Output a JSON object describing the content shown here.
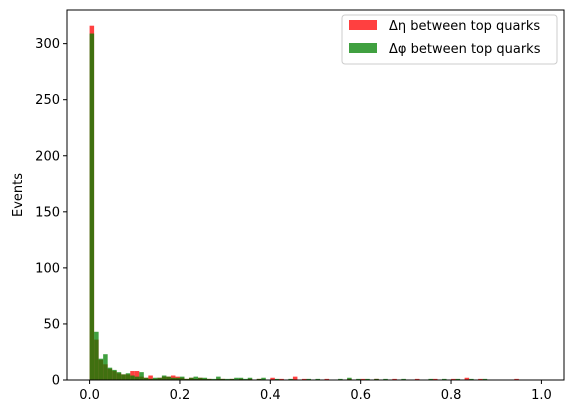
{
  "chart_data": {
    "type": "bar",
    "title": "",
    "xlabel": "",
    "ylabel": "Events",
    "xlim": [
      -0.05,
      1.05
    ],
    "ylim": [
      0,
      330
    ],
    "xticks": [
      "0.0",
      "0.2",
      "0.4",
      "0.6",
      "0.8",
      "1.0"
    ],
    "yticks": [
      "0",
      "50",
      "100",
      "150",
      "200",
      "250",
      "300"
    ],
    "grid": false,
    "legend_position": "top-right",
    "bin_width": 0.01,
    "series": [
      {
        "name": "Δη between top quarks",
        "color": "#ff0000",
        "alpha": 0.75,
        "bins": [
          [
            0.0,
            316
          ],
          [
            0.01,
            36
          ],
          [
            0.02,
            18
          ],
          [
            0.03,
            14
          ],
          [
            0.04,
            10
          ],
          [
            0.05,
            8
          ],
          [
            0.06,
            6
          ],
          [
            0.07,
            5
          ],
          [
            0.08,
            5
          ],
          [
            0.09,
            8
          ],
          [
            0.1,
            8
          ],
          [
            0.11,
            3
          ],
          [
            0.12,
            2
          ],
          [
            0.13,
            4
          ],
          [
            0.14,
            1
          ],
          [
            0.15,
            2
          ],
          [
            0.16,
            3
          ],
          [
            0.17,
            3
          ],
          [
            0.18,
            4
          ],
          [
            0.19,
            3
          ],
          [
            0.2,
            2
          ],
          [
            0.21,
            1
          ],
          [
            0.22,
            2
          ],
          [
            0.23,
            1
          ],
          [
            0.24,
            2
          ],
          [
            0.25,
            1
          ],
          [
            0.26,
            1
          ],
          [
            0.28,
            1
          ],
          [
            0.29,
            1
          ],
          [
            0.31,
            1
          ],
          [
            0.33,
            1
          ],
          [
            0.35,
            1
          ],
          [
            0.37,
            1
          ],
          [
            0.4,
            2
          ],
          [
            0.42,
            1
          ],
          [
            0.45,
            3
          ],
          [
            0.47,
            1
          ],
          [
            0.52,
            1
          ],
          [
            0.57,
            1
          ],
          [
            0.6,
            1
          ],
          [
            0.63,
            1
          ],
          [
            0.67,
            1
          ],
          [
            0.72,
            1
          ],
          [
            0.76,
            1
          ],
          [
            0.8,
            1
          ],
          [
            0.83,
            2
          ],
          [
            0.86,
            1
          ],
          [
            0.94,
            1
          ]
        ]
      },
      {
        "name": "Δφ between top quarks",
        "color": "#008000",
        "alpha": 0.75,
        "bins": [
          [
            0.0,
            309
          ],
          [
            0.01,
            43
          ],
          [
            0.02,
            19
          ],
          [
            0.03,
            23
          ],
          [
            0.04,
            11
          ],
          [
            0.05,
            9
          ],
          [
            0.06,
            7
          ],
          [
            0.07,
            5
          ],
          [
            0.08,
            6
          ],
          [
            0.09,
            4
          ],
          [
            0.1,
            3
          ],
          [
            0.11,
            7
          ],
          [
            0.12,
            2
          ],
          [
            0.13,
            1
          ],
          [
            0.14,
            2
          ],
          [
            0.15,
            2
          ],
          [
            0.16,
            4
          ],
          [
            0.17,
            3
          ],
          [
            0.18,
            2
          ],
          [
            0.19,
            2
          ],
          [
            0.2,
            3
          ],
          [
            0.21,
            1
          ],
          [
            0.22,
            2
          ],
          [
            0.23,
            3
          ],
          [
            0.24,
            2
          ],
          [
            0.25,
            2
          ],
          [
            0.26,
            1
          ],
          [
            0.27,
            1
          ],
          [
            0.28,
            3
          ],
          [
            0.29,
            1
          ],
          [
            0.3,
            1
          ],
          [
            0.31,
            1
          ],
          [
            0.32,
            2
          ],
          [
            0.33,
            2
          ],
          [
            0.34,
            1
          ],
          [
            0.35,
            2
          ],
          [
            0.37,
            1
          ],
          [
            0.38,
            2
          ],
          [
            0.41,
            1
          ],
          [
            0.44,
            1
          ],
          [
            0.48,
            1
          ],
          [
            0.5,
            1
          ],
          [
            0.55,
            1
          ],
          [
            0.57,
            2
          ],
          [
            0.59,
            1
          ],
          [
            0.61,
            1
          ],
          [
            0.63,
            1
          ],
          [
            0.65,
            1
          ],
          [
            0.69,
            1
          ],
          [
            0.75,
            1
          ],
          [
            0.78,
            1
          ],
          [
            0.81,
            1
          ],
          [
            0.84,
            1
          ],
          [
            0.87,
            1
          ]
        ]
      }
    ]
  }
}
